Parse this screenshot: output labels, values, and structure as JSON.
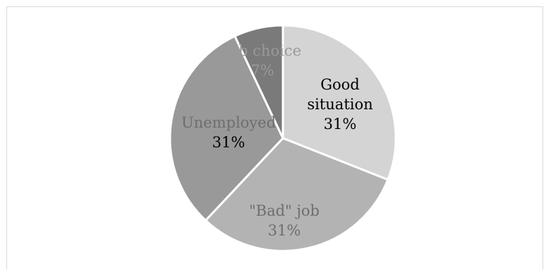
{
  "chart_data": {
    "type": "pie",
    "title": "",
    "start_angle_deg": 0,
    "direction": "clockwise",
    "slices": [
      {
        "category": "Good situation",
        "label_lines": [
          "Good",
          "situation"
        ],
        "value": 31,
        "value_label": "31%",
        "color": "#d4d4d4",
        "category_color": "#000000",
        "value_color": "#000000"
      },
      {
        "category": "\"Bad\" job",
        "label_lines": [
          "\"Bad\" job"
        ],
        "value": 31,
        "value_label": "31%",
        "color": "#b3b3b3",
        "category_color": "#6e6e6e",
        "value_color": "#6e6e6e"
      },
      {
        "category": "Unemployed",
        "label_lines": [
          "Unemployed"
        ],
        "value": 31,
        "value_label": "31%",
        "color": "#999999",
        "category_color": "#6e6e6e",
        "value_color": "#000000"
      },
      {
        "category": "Job choice",
        "label_lines": [
          "Job choice"
        ],
        "value": 7,
        "value_label": "7%",
        "color": "#7a7a7a",
        "category_color": "#999999",
        "value_color": "#999999"
      }
    ]
  }
}
